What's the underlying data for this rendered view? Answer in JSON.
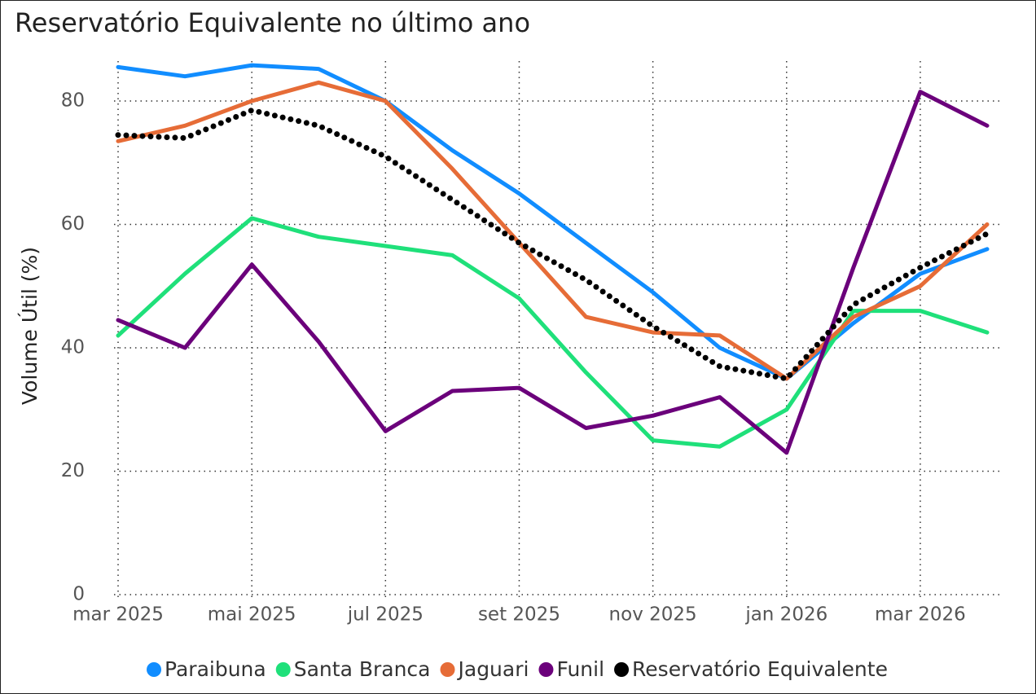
{
  "chart_data": {
    "type": "line",
    "title": "Reservatório Equivalente no último ano",
    "y_label": "Volume Útil (%)",
    "x": [
      "2025-03",
      "2025-04",
      "2025-05",
      "2025-06",
      "2025-07",
      "2025-08",
      "2025-09",
      "2025-10",
      "2025-11",
      "2025-12",
      "2026-01",
      "2026-02",
      "2026-03",
      "2026-04"
    ],
    "xlim": [
      "2025-03",
      "2026-04"
    ],
    "xticks": [
      {
        "value": "2025-03",
        "label": "mar 2025"
      },
      {
        "value": "2025-05",
        "label": "mai 2025"
      },
      {
        "value": "2025-07",
        "label": "jul 2025"
      },
      {
        "value": "2025-09",
        "label": "set 2025"
      },
      {
        "value": "2025-11",
        "label": "nov 2025"
      },
      {
        "value": "2026-01",
        "label": "jan 2026"
      },
      {
        "value": "2026-03",
        "label": "mar 2026"
      }
    ],
    "ylim": [
      0,
      87
    ],
    "yticks": [
      0,
      20,
      40,
      60,
      80
    ],
    "grid": true,
    "legend": "bottom",
    "series": [
      {
        "name": "Paraibuna",
        "color": "#118dff",
        "values": [
          85.5,
          84,
          85.8,
          85.2,
          80,
          72,
          65,
          57,
          49,
          40,
          35,
          44,
          52,
          56
        ]
      },
      {
        "name": "Santa Branca",
        "color": "#1fe07a",
        "values": [
          42,
          52,
          61,
          58,
          56.5,
          55,
          48,
          36,
          25,
          24,
          30,
          46,
          46,
          42.5
        ]
      },
      {
        "name": "Jaguari",
        "color": "#e66c37",
        "values": [
          73.5,
          76,
          80,
          83,
          80,
          69,
          57,
          45,
          42.5,
          42,
          35,
          45,
          50,
          60
        ]
      },
      {
        "name": "Funil",
        "color": "#6b007b",
        "values": [
          44.5,
          40,
          53.5,
          41,
          26.5,
          33,
          33.5,
          27,
          29,
          32,
          23,
          53,
          81.5,
          76
        ]
      },
      {
        "name": "Reservatório Equivalente",
        "color": "#000000",
        "values": [
          74.5,
          74,
          78.5,
          76,
          71,
          64,
          57,
          51,
          43.5,
          37,
          35,
          47,
          53,
          58.5
        ]
      }
    ]
  }
}
